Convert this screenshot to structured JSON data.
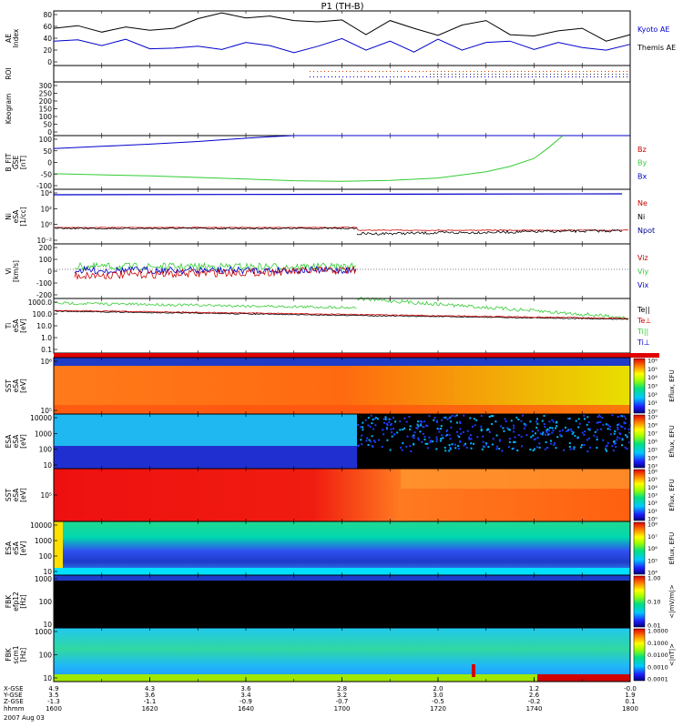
{
  "chart_data": {
    "type": "line",
    "title": "P1 (TH-B)",
    "date_label": "2007 Aug 03",
    "time_axis": {
      "labels": [
        "1600",
        "1620",
        "1640",
        "1700",
        "1720",
        "1740",
        "1800"
      ],
      "row_names": [
        "X-GSE",
        "Y-GSE",
        "Z-GSE",
        "hhmm"
      ],
      "x_gse": [
        "4.9",
        "4.3",
        "3.6",
        "2.8",
        "2.0",
        "1.2",
        "-0.0"
      ],
      "y_gse": [
        "3.5",
        "3.6",
        "3.4",
        "3.2",
        "3.0",
        "2.6",
        "1.9"
      ],
      "z_gse": [
        "-1.3",
        "-1.1",
        "-0.9",
        "-0.7",
        "-0.5",
        "-0.2",
        "0.1"
      ]
    },
    "panels": [
      {
        "id": "ae",
        "ylabel": "AE Index",
        "yticks": [
          "0",
          "20",
          "40",
          "60",
          "80"
        ],
        "ylim": [
          0,
          85
        ],
        "legend": [
          {
            "name": "Kyoto AE",
            "color": "#0000cc"
          },
          {
            "name": "Themis AE",
            "color": "#000000"
          }
        ],
        "series": [
          {
            "name": "Kyoto AE",
            "color": "#0000cc",
            "t": [
              0,
              5,
              10,
              15,
              20,
              25,
              30,
              35,
              40,
              45,
              50,
              55,
              60,
              65,
              70,
              75,
              80,
              85,
              90,
              95,
              100,
              105,
              110,
              115,
              120
            ],
            "values": [
              38,
              40,
              31,
              41,
              26,
              27,
              30,
              25,
              36,
              31,
              20,
              30,
              42,
              24,
              38,
              21,
              41,
              24,
              36,
              38,
              25,
              36,
              28,
              24,
              33
            ]
          },
          {
            "name": "Themis AE",
            "color": "#000000",
            "t": [
              0,
              5,
              10,
              15,
              20,
              25,
              30,
              35,
              40,
              45,
              50,
              55,
              60,
              65,
              70,
              75,
              80,
              85,
              90,
              95,
              100,
              105,
              110,
              115,
              120
            ],
            "values": [
              58,
              62,
              52,
              60,
              55,
              58,
              73,
              82,
              74,
              77,
              70,
              68,
              71,
              48,
              70,
              58,
              47,
              63,
              70,
              48,
              46,
              54,
              58,
              38,
              48
            ]
          }
        ]
      },
      {
        "id": "roi",
        "ylabel": "ROI"
      },
      {
        "id": "keogram",
        "ylabel": "Keogram",
        "yticks": [
          "0",
          "50",
          "100",
          "150",
          "200",
          "250",
          "300"
        ]
      },
      {
        "id": "bfgm",
        "ylabel": "B_FIT GSE [nT]",
        "yticks": [
          "-100",
          "-50",
          "0",
          "50",
          "100"
        ],
        "ylim": [
          -100,
          100
        ],
        "legend": [
          {
            "name": "Bz",
            "color": "#cc0000"
          },
          {
            "name": "By",
            "color": "#33cc33"
          },
          {
            "name": "Bx",
            "color": "#0000cc"
          }
        ],
        "series": [
          {
            "name": "Bx",
            "color": "#0000cc",
            "t": [
              0,
              10,
              20,
              30,
              40,
              45,
              50,
              55,
              60,
              120
            ],
            "values": [
              52,
              60,
              68,
              78,
              90,
              96,
              100,
              100,
              100,
              100
            ]
          },
          {
            "name": "By",
            "color": "#33cc33",
            "t": [
              0,
              10,
              20,
              30,
              40,
              50,
              60,
              70,
              80,
              90,
              95,
              100,
              103,
              106
            ],
            "values": [
              -42,
              -46,
              -50,
              -56,
              -62,
              -68,
              -70,
              -67,
              -58,
              -35,
              -15,
              15,
              55,
              100
            ]
          }
        ]
      },
      {
        "id": "ni",
        "ylabel": "Ni eSA [1/cc]",
        "yticks": [
          "10⁻²",
          "10⁰",
          "10²",
          "10⁴"
        ],
        "legend": [
          {
            "name": "Ne",
            "color": "#cc0000"
          },
          {
            "name": "Ni",
            "color": "#000000"
          },
          {
            "name": "Npot",
            "color": "#000099"
          }
        ]
      },
      {
        "id": "vi",
        "ylabel": "Vi [km/s]",
        "yticks": [
          "-200",
          "-100",
          "0",
          "100",
          "200"
        ],
        "ylim": [
          -250,
          250
        ],
        "legend": [
          {
            "name": "Viz",
            "color": "#cc0000"
          },
          {
            "name": "Viy",
            "color": "#33cc33"
          },
          {
            "name": "Vix",
            "color": "#0000cc"
          }
        ]
      },
      {
        "id": "ti",
        "ylabel": "Ti eSA [eV]",
        "yticks": [
          "0.1",
          "1.0",
          "10.0",
          "100.0",
          "1000.0"
        ],
        "legend": [
          {
            "name": "Te||",
            "color": "#000000"
          },
          {
            "name": "Te⊥",
            "color": "#cc0000"
          },
          {
            "name": "Ti||",
            "color": "#33cc33"
          },
          {
            "name": "Ti⊥",
            "color": "#0000cc"
          }
        ]
      },
      {
        "id": "sst-e",
        "ylabel": "SST eSA [eV]",
        "yticks": [
          "10⁵",
          "10⁶"
        ],
        "colorbar_ticks": [
          "10⁰",
          "10¹",
          "10²",
          "10³",
          "10⁴",
          "10⁵",
          "10⁶"
        ],
        "colorbar_label": "Eflux, EFU"
      },
      {
        "id": "esa-e",
        "ylabel": "ESA eSA [eV]",
        "yticks": [
          "10",
          "100",
          "1000",
          "10000"
        ],
        "colorbar_ticks": [
          "10³",
          "10⁴",
          "10⁵",
          "10⁶",
          "10⁷",
          "10⁸",
          "10⁹"
        ],
        "colorbar_label": "Eflux, EFU"
      },
      {
        "id": "sst-i",
        "ylabel": "SST eSA [eV]",
        "yticks": [
          "10⁵"
        ],
        "colorbar_ticks": [
          "10⁰",
          "10¹",
          "10²",
          "10³",
          "10⁴",
          "10⁵",
          "10⁶"
        ],
        "colorbar_label": "Eflux, EFU"
      },
      {
        "id": "esa-i",
        "ylabel": "ESA eSA [eV]",
        "yticks": [
          "10",
          "100",
          "1000",
          "10000"
        ],
        "colorbar_ticks": [
          "10⁴",
          "10⁵",
          "10⁶",
          "10⁷",
          "10⁸"
        ],
        "colorbar_label": "Eflux, EFU"
      },
      {
        "id": "fbk-e",
        "ylabel": "FBK efp12 [Hz]",
        "yticks": [
          "10",
          "100",
          "1000"
        ],
        "colorbar_ticks": [
          "0.01",
          "0.10",
          "1.00"
        ],
        "colorbar_label": "<|mV/m|>"
      },
      {
        "id": "fbk-b",
        "ylabel": "FBK scm1 [Hz]",
        "yticks": [
          "10",
          "100",
          "1000"
        ],
        "colorbar_ticks": [
          "0.0001",
          "0.0010",
          "0.0100",
          "0.1000",
          "1.0000"
        ],
        "colorbar_label": "<|nT|>"
      }
    ]
  }
}
